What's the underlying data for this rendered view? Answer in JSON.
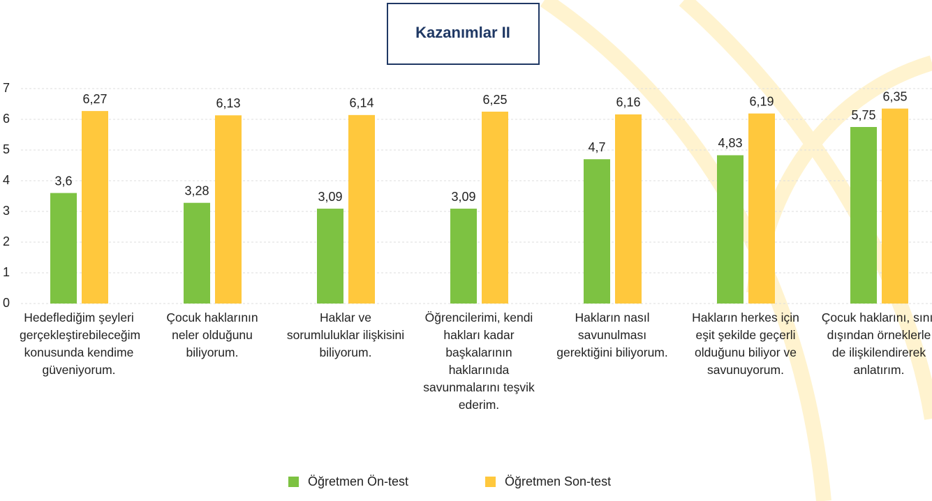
{
  "chart_data": {
    "type": "bar",
    "title": "Kazanımlar II",
    "categories": [
      "Hedeflediğim şeyleri gerçekleştirebileceğim konusunda kendime güveniyorum.",
      "Çocuk haklarının neler olduğunu biliyorum.",
      "Haklar ve sorumluluklar ilişkisini biliyorum.",
      "Öğrencilerimi, kendi hakları kadar başkalarının haklarınıda savunmalarını teşvik ederim.",
      "Hakların nasıl savunulması gerektiğini biliyorum.",
      "Hakların herkes için eşit şekilde geçerli olduğunu biliyor ve savunuyorum.",
      "Çocuk haklarını, sınıf dışından örneklerle de ilişkilendirerek anlatırım."
    ],
    "series": [
      {
        "name": "Öğretmen Ön-test",
        "color": "#7dc242",
        "values": [
          3.6,
          3.28,
          3.09,
          3.09,
          4.7,
          4.83,
          5.75
        ],
        "value_labels": [
          "3,6",
          "3,28",
          "3,09",
          "3,09",
          "4,7",
          "4,83",
          "5,75"
        ]
      },
      {
        "name": "Öğretmen Son-test",
        "color": "#ffc83d",
        "values": [
          6.27,
          6.13,
          6.14,
          6.25,
          6.16,
          6.19,
          6.35
        ],
        "value_labels": [
          "6,27",
          "6,13",
          "6,14",
          "6,25",
          "6,16",
          "6,19",
          "6,35"
        ]
      }
    ],
    "ylim": [
      0,
      7
    ],
    "yticks": [
      0,
      1,
      2,
      3,
      4,
      5,
      6,
      7
    ],
    "grid": true
  }
}
